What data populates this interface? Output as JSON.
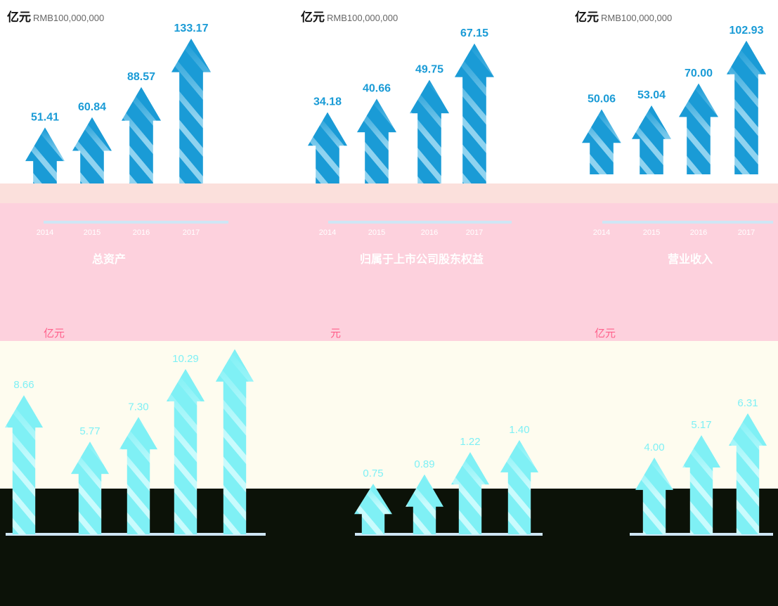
{
  "colors": {
    "arrow_top": "#1a9bd6",
    "arrow_bottom": "#7ff0f5",
    "axis": "#cfe6f5"
  },
  "top_units": [
    "亿元",
    "亿元",
    "亿元"
  ],
  "top_unit_en": "RMB100,000,000",
  "bottom_units": [
    "亿元",
    "元",
    "亿元"
  ],
  "chart_data": [
    {
      "type": "bar",
      "title": "总资产",
      "categories": [
        "2014",
        "2015",
        "2016",
        "2017"
      ],
      "values": [
        51.41,
        60.84,
        88.57,
        133.17
      ],
      "ylabel": "亿元 RMB100,000,000"
    },
    {
      "type": "bar",
      "title": "归属于上市公司股东权益",
      "categories": [
        "2014",
        "2015",
        "2016",
        "2017"
      ],
      "values": [
        34.18,
        40.66,
        49.75,
        67.15
      ],
      "ylabel": "亿元 RMB100,000,000"
    },
    {
      "type": "bar",
      "title": "营业收入",
      "categories": [
        "2014",
        "2015",
        "2016",
        "2017"
      ],
      "values": [
        50.06,
        53.04,
        70.0,
        102.93
      ],
      "ylabel": "亿元 RMB100,000,000"
    },
    {
      "type": "bar",
      "title": "",
      "categories": [
        "",
        "",
        "",
        "",
        ""
      ],
      "values": [
        8.66,
        5.77,
        7.3,
        10.29,
        null
      ],
      "ylabel": "亿元"
    },
    {
      "type": "bar",
      "title": "",
      "categories": [
        "",
        "",
        "",
        ""
      ],
      "values": [
        0.75,
        0.89,
        1.22,
        1.4
      ],
      "ylabel": "元"
    },
    {
      "type": "bar",
      "title": "",
      "categories": [
        "",
        "",
        ""
      ],
      "values": [
        4.0,
        5.17,
        6.31
      ],
      "ylabel": "亿元"
    }
  ]
}
